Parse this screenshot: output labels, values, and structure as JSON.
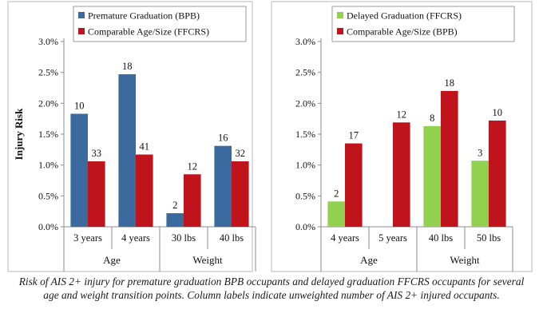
{
  "y_axis_title": "Injury Risk",
  "caption": "Risk of AIS 2+ injury for premature graduation BPB occupants and delayed graduation FFCRS occupants for several age and weight transition points. Column labels indicate unweighted number of AIS 2+ injured occupants.",
  "colors": {
    "blue": "#3a6a9e",
    "red": "#c0141c",
    "green": "#92d050",
    "axis": "#8c8c8c"
  },
  "chart_data": [
    {
      "type": "bar",
      "ylabel": "Injury Risk",
      "ylim": [
        0,
        0.03
      ],
      "yticks": [
        "0.0%",
        "0.5%",
        "1.0%",
        "1.5%",
        "2.0%",
        "2.5%",
        "3.0%"
      ],
      "grid": false,
      "legend_position": "top",
      "categories": [
        "3 years",
        "4 years",
        "30 lbs",
        "40 lbs"
      ],
      "groups": [
        {
          "label": "Age",
          "categories": [
            "3 years",
            "4 years"
          ]
        },
        {
          "label": "Weight",
          "categories": [
            "30 lbs",
            "40 lbs"
          ]
        }
      ],
      "series": [
        {
          "name": "Premature Graduation (BPB)",
          "color": "blue",
          "values": [
            0.0183,
            0.0247,
            0.0022,
            0.0131
          ],
          "labels": [
            "10",
            "18",
            "2",
            "16"
          ]
        },
        {
          "name": "Comparable Age/Size (FFCRS)",
          "color": "red",
          "values": [
            0.0106,
            0.0117,
            0.0085,
            0.0106
          ],
          "labels": [
            "33",
            "41",
            "12",
            "32"
          ]
        }
      ]
    },
    {
      "type": "bar",
      "ylim": [
        0,
        0.03
      ],
      "yticks": [
        "0.0%",
        "0.5%",
        "1.0%",
        "1.5%",
        "2.0%",
        "2.5%",
        "3.0%"
      ],
      "grid": false,
      "legend_position": "top",
      "categories": [
        "4 years",
        "5 years",
        "40 lbs",
        "50 lbs"
      ],
      "groups": [
        {
          "label": "Age",
          "categories": [
            "4 years",
            "5 years"
          ]
        },
        {
          "label": "Weight",
          "categories": [
            "40 lbs",
            "50 lbs"
          ]
        }
      ],
      "series": [
        {
          "name": "Delayed Graduation (FFCRS)",
          "color": "green",
          "values": [
            0.0041,
            null,
            0.0163,
            0.0107
          ],
          "labels": [
            "2",
            null,
            "8",
            "3"
          ]
        },
        {
          "name": "Comparable Age/Size (BPB)",
          "color": "red",
          "values": [
            0.0135,
            0.0169,
            0.022,
            0.0172
          ],
          "labels": [
            "17",
            "12",
            "18",
            "10"
          ]
        }
      ]
    }
  ]
}
